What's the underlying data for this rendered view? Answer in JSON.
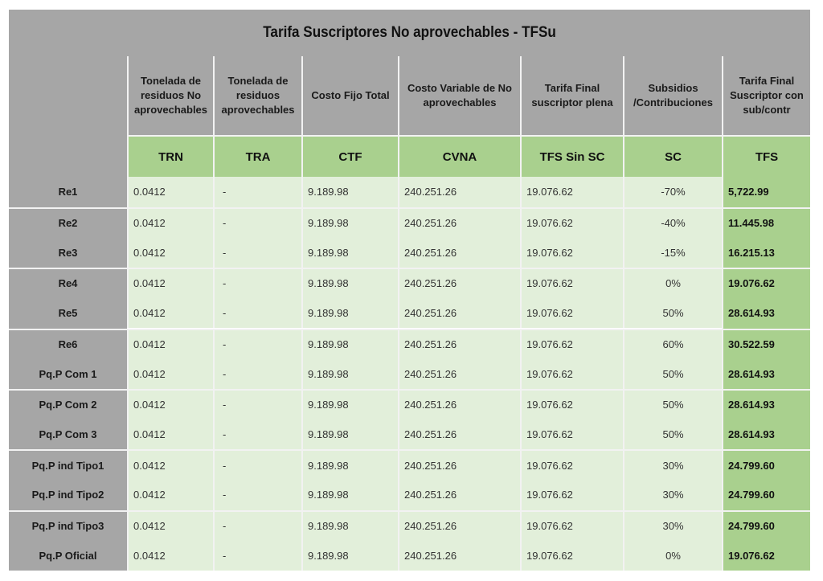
{
  "title": "Tarifa Suscriptores No aprovechables - TFSu",
  "columns": [
    {
      "header": "Tonelada de residuos No aprovechables",
      "code": "TRN"
    },
    {
      "header": "Tonelada de residuos aprovechables",
      "code": "TRA"
    },
    {
      "header": "Costo Fijo Total",
      "code": "CTF"
    },
    {
      "header": "Costo Variable de No aprovechables",
      "code": "CVNA"
    },
    {
      "header": "Tarifa Final suscriptor plena",
      "code": "TFS Sin SC"
    },
    {
      "header": "Subsidios /Contribuciones",
      "code": "SC"
    },
    {
      "header": "Tarifa Final Suscriptor con sub/contr",
      "code": "TFS"
    }
  ],
  "rows": [
    {
      "label": "Re1",
      "trn": "0.0412",
      "tra": "-",
      "ctf": "9.189.98",
      "cvna": "240.251.26",
      "tfs_sin_sc": "19.076.62",
      "sc": "-70%",
      "tfs": "5,722.99"
    },
    {
      "label": "Re2",
      "trn": "0.0412",
      "tra": "-",
      "ctf": "9.189.98",
      "cvna": "240.251.26",
      "tfs_sin_sc": "19.076.62",
      "sc": "-40%",
      "tfs": "11.445.98"
    },
    {
      "label": "Re3",
      "trn": "0.0412",
      "tra": "-",
      "ctf": "9.189.98",
      "cvna": "240.251.26",
      "tfs_sin_sc": "19.076.62",
      "sc": "-15%",
      "tfs": "16.215.13"
    },
    {
      "label": "Re4",
      "trn": "0.0412",
      "tra": "-",
      "ctf": "9.189.98",
      "cvna": "240.251.26",
      "tfs_sin_sc": "19.076.62",
      "sc": "0%",
      "tfs": "19.076.62"
    },
    {
      "label": "Re5",
      "trn": "0.0412",
      "tra": "-",
      "ctf": "9.189.98",
      "cvna": "240.251.26",
      "tfs_sin_sc": "19.076.62",
      "sc": "50%",
      "tfs": "28.614.93"
    },
    {
      "label": "Re6",
      "trn": "0.0412",
      "tra": "-",
      "ctf": "9.189.98",
      "cvna": "240.251.26",
      "tfs_sin_sc": "19.076.62",
      "sc": "60%",
      "tfs": "30.522.59"
    },
    {
      "label": "Pq.P Com 1",
      "trn": "0.0412",
      "tra": "-",
      "ctf": "9.189.98",
      "cvna": "240.251.26",
      "tfs_sin_sc": "19.076.62",
      "sc": "50%",
      "tfs": "28.614.93"
    },
    {
      "label": "Pq.P Com 2",
      "trn": "0.0412",
      "tra": "-",
      "ctf": "9.189.98",
      "cvna": "240.251.26",
      "tfs_sin_sc": "19.076.62",
      "sc": "50%",
      "tfs": "28.614.93"
    },
    {
      "label": "Pq.P Com 3",
      "trn": "0.0412",
      "tra": "-",
      "ctf": "9.189.98",
      "cvna": "240.251.26",
      "tfs_sin_sc": "19.076.62",
      "sc": "50%",
      "tfs": "28.614.93"
    },
    {
      "label": "Pq.P ind Tipo1",
      "trn": "0.0412",
      "tra": "-",
      "ctf": "9.189.98",
      "cvna": "240.251.26",
      "tfs_sin_sc": "19.076.62",
      "sc": "30%",
      "tfs": "24.799.60"
    },
    {
      "label": "Pq.P ind Tipo2",
      "trn": "0.0412",
      "tra": "-",
      "ctf": "9.189.98",
      "cvna": "240.251.26",
      "tfs_sin_sc": "19.076.62",
      "sc": "30%",
      "tfs": "24.799.60"
    },
    {
      "label": "Pq.P ind Tipo3",
      "trn": "0.0412",
      "tra": "-",
      "ctf": "9.189.98",
      "cvna": "240.251.26",
      "tfs_sin_sc": "19.076.62",
      "sc": "30%",
      "tfs": "24.799.60"
    },
    {
      "label": "Pq.P Oficial",
      "trn": "0.0412",
      "tra": "-",
      "ctf": "9.189.98",
      "cvna": "240.251.26",
      "tfs_sin_sc": "19.076.62",
      "sc": "0%",
      "tfs": "19.076.62"
    }
  ],
  "colors": {
    "header_gray": "#a6a6a6",
    "code_green": "#a9d08e",
    "data_light_green": "#e2efda"
  }
}
